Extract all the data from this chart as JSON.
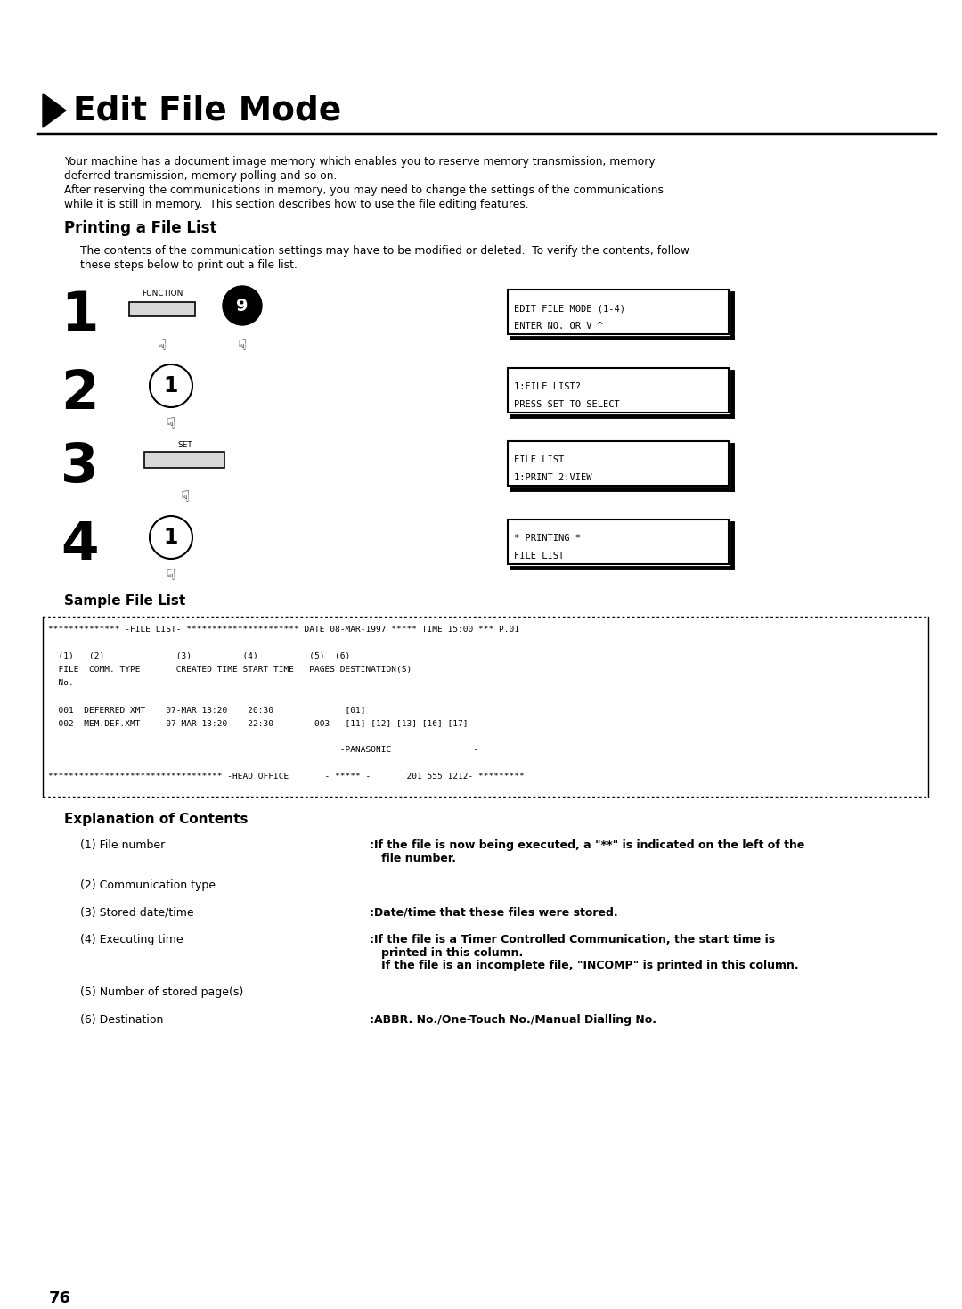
{
  "title": "Edit File Mode",
  "bg_color": "#ffffff",
  "intro_lines": [
    "Your machine has a document image memory which enables you to reserve memory transmission, memory",
    "deferred transmission, memory polling and so on.",
    "After reserving the communications in memory, you may need to change the settings of the communications",
    "while it is still in memory.  This section describes how to use the file editing features."
  ],
  "section1_title": "Printing a File List",
  "section1_intro": [
    "The contents of the communication settings may have to be modified or deleted.  To verify the contents, follow",
    "these steps below to print out a file list."
  ],
  "steps": [
    {
      "num": "1",
      "display": [
        "EDIT FILE MODE (1-4)",
        "ENTER NO. OR V ^"
      ],
      "type": "func_and_9"
    },
    {
      "num": "2",
      "display": [
        "1:FILE LIST?",
        "PRESS SET TO SELECT"
      ],
      "type": "circle1"
    },
    {
      "num": "3",
      "display": [
        "FILE LIST",
        "1:PRINT 2:VIEW"
      ],
      "type": "set"
    },
    {
      "num": "4",
      "display": [
        "* PRINTING *",
        "FILE LIST"
      ],
      "type": "circle1"
    }
  ],
  "sample_title": "Sample File List",
  "file_list": [
    "************** -FILE LIST- ********************** DATE 08-MAR-1997 ***** TIME 15:00 *** P.01",
    "",
    "  (1)   (2)              (3)          (4)          (5)  (6)",
    "  FILE  COMM. TYPE       CREATED TIME START TIME   PAGES DESTINATION(S)",
    "  No.",
    "",
    "  001  DEFERRED XMT    07-MAR 13:20    20:30              [01]",
    "  002  MEM.DEF.XMT     07-MAR 13:20    22:30        003   [11] [12] [13] [16] [17]",
    "",
    "                                                         -PANASONIC                -",
    "",
    "********************************** -HEAD OFFICE       - ***** -       201 555 1212- *********"
  ],
  "explanation_title": "Explanation of Contents",
  "explanations": [
    {
      "label": "(1) File number",
      "desc_lines": [
        ":If the file is now being executed, a \"**\" is indicated on the left of the",
        "   file number."
      ]
    },
    {
      "label": "(2) Communication type",
      "desc_lines": []
    },
    {
      "label": "(3) Stored date/time",
      "desc_lines": [
        ":Date/time that these files were stored."
      ]
    },
    {
      "label": "(4) Executing time",
      "desc_lines": [
        ":If the file is a Timer Controlled Communication, the start time is",
        "   printed in this column.",
        "   If the file is an incomplete file, \"INCOMP\" is printed in this column."
      ]
    },
    {
      "label": "(5) Number of stored page(s)",
      "desc_lines": []
    },
    {
      "label": "(6) Destination",
      "desc_lines": [
        ":ABBR. No./One-Touch No./Manual Dialling No."
      ]
    }
  ],
  "page_num": "76"
}
